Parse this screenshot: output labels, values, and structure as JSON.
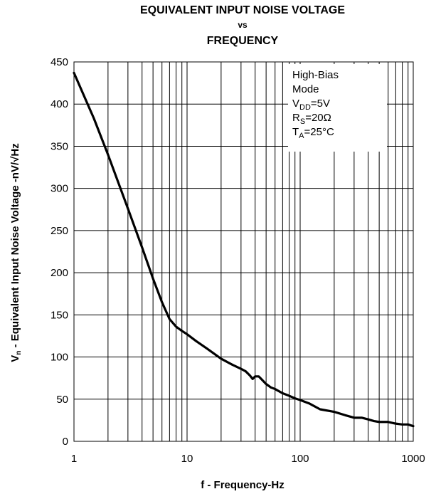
{
  "chart_data": {
    "type": "line",
    "title_lines": [
      "EQUIVALENT INPUT NOISE VOLTAGE",
      "vs",
      "FREQUENCY"
    ],
    "xlabel": "f - Frequency-Hz",
    "ylabel": {
      "prefix": "V",
      "sub": "n",
      "text": " - Equivalent Input Noise Voltage -nV/",
      "radical": "√",
      "unit": "Hz"
    },
    "x_scale": "log",
    "xlim": [
      1,
      1000
    ],
    "ylim": [
      0,
      450
    ],
    "x_ticks": [
      1,
      10,
      100,
      1000
    ],
    "y_ticks": [
      0,
      50,
      100,
      150,
      200,
      250,
      300,
      350,
      400,
      450
    ],
    "grid": true,
    "annotation": {
      "placement": "top-right",
      "lines": [
        {
          "parts": [
            {
              "t": "High-Bias"
            }
          ]
        },
        {
          "parts": [
            {
              "t": "Mode"
            }
          ]
        },
        {
          "parts": [
            {
              "t": "V"
            },
            {
              "t": "DD",
              "sub": true
            },
            {
              "t": "=5V"
            }
          ]
        },
        {
          "parts": [
            {
              "t": "R"
            },
            {
              "t": "S",
              "sub": true
            },
            {
              "t": "=20Ω"
            }
          ]
        },
        {
          "parts": [
            {
              "t": " T"
            },
            {
              "t": "A",
              "sub": true
            },
            {
              "t": "=25°C"
            }
          ]
        }
      ]
    },
    "series": [
      {
        "color": "#000000",
        "x": [
          1,
          1.5,
          2,
          3,
          4,
          5,
          6,
          7,
          8,
          9,
          10,
          12,
          15,
          20,
          25,
          30,
          33,
          36,
          38,
          40,
          43,
          46,
          50,
          55,
          60,
          70,
          80,
          90,
          100,
          120,
          150,
          200,
          250,
          300,
          350,
          400,
          450,
          500,
          600,
          700,
          800,
          900,
          1000
        ],
        "y": [
          437,
          383,
          340,
          276,
          230,
          193,
          165,
          145,
          136,
          131,
          127,
          119,
          110,
          98,
          91,
          86,
          83,
          78,
          74,
          77,
          77,
          73,
          68,
          64,
          62,
          57,
          54,
          51,
          49,
          45,
          38,
          35,
          31,
          28,
          28,
          26,
          24,
          23,
          23,
          21,
          20,
          20,
          18
        ]
      }
    ]
  }
}
